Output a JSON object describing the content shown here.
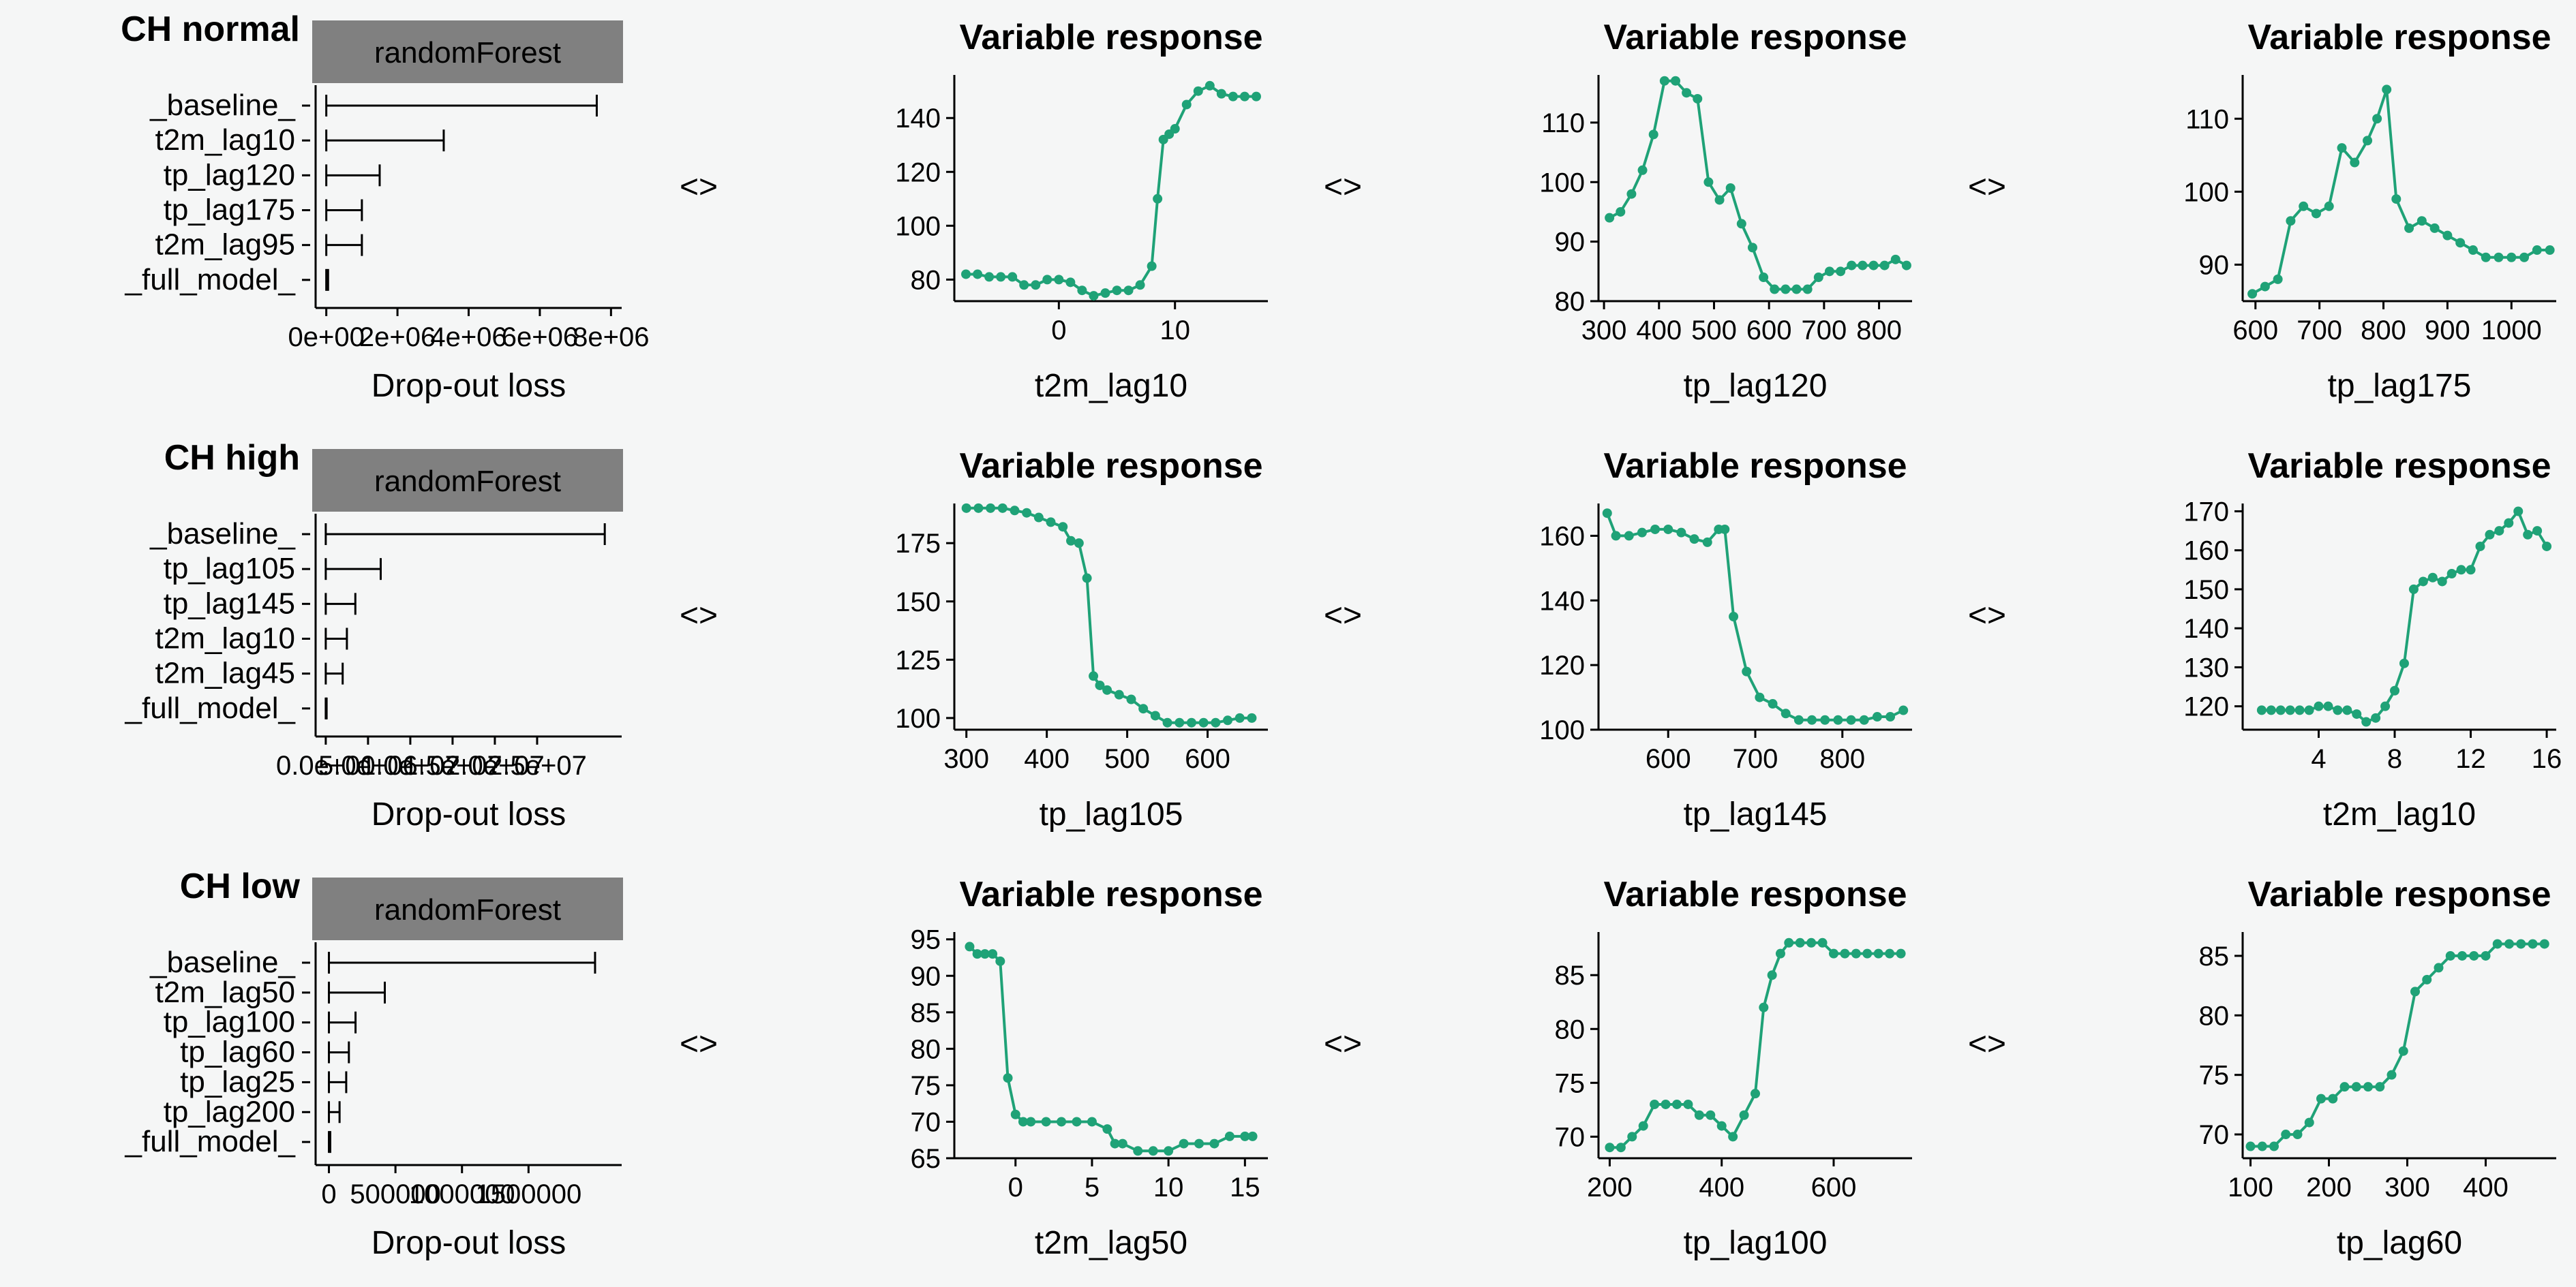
{
  "arrow_label": "<>",
  "colors": {
    "background": "#f5f6f6",
    "line": "#1fa277",
    "strip": "#808080",
    "axis": "#000000"
  },
  "chart_data": [
    {
      "type": "bar",
      "row": 0,
      "col": 0,
      "title": "CH normal",
      "strip": "randomForest",
      "xlabel": "Drop-out loss",
      "categories": [
        "_baseline_",
        "t2m_lag10",
        "tp_lag120",
        "tp_lag175",
        "t2m_lag95",
        "_full_model_"
      ],
      "values": [
        7600000,
        3300000,
        1500000,
        1000000,
        1000000,
        50000
      ],
      "xlim": [
        -300000,
        8300000
      ],
      "ticks": [
        {
          "v": 0,
          "label": "0e+00"
        },
        {
          "v": 2000000,
          "label": "2e+06"
        },
        {
          "v": 4000000,
          "label": "4e+06"
        },
        {
          "v": 6000000,
          "label": "6e+06"
        },
        {
          "v": 8000000,
          "label": "8e+06"
        }
      ]
    },
    {
      "type": "line",
      "row": 0,
      "col": 1,
      "title": "Variable response",
      "xlabel": "t2m_lag10",
      "xlim": [
        -9,
        18
      ],
      "ylim": [
        72,
        156
      ],
      "xticks": [
        {
          "v": 0,
          "label": "0"
        },
        {
          "v": 10,
          "label": "10"
        }
      ],
      "yticks": [
        {
          "v": 80,
          "label": "80"
        },
        {
          "v": 100,
          "label": "100"
        },
        {
          "v": 120,
          "label": "120"
        },
        {
          "v": 140,
          "label": "140"
        }
      ],
      "x": [
        -8,
        -7,
        -6,
        -5,
        -4,
        -3,
        -2,
        -1,
        0,
        1,
        2,
        3,
        4,
        5,
        6,
        7,
        8,
        8.5,
        9,
        9.5,
        10,
        11,
        12,
        13,
        14,
        15,
        16,
        17
      ],
      "y": [
        82,
        82,
        81,
        81,
        81,
        78,
        78,
        80,
        80,
        79,
        76,
        74,
        75,
        76,
        76,
        78,
        85,
        110,
        132,
        134,
        136,
        145,
        150,
        152,
        149,
        148,
        148,
        148
      ]
    },
    {
      "type": "line",
      "row": 0,
      "col": 2,
      "title": "Variable response",
      "xlabel": "tp_lag120",
      "xlim": [
        290,
        860
      ],
      "ylim": [
        80,
        118
      ],
      "xticks": [
        {
          "v": 300,
          "label": "300"
        },
        {
          "v": 400,
          "label": "400"
        },
        {
          "v": 500,
          "label": "500"
        },
        {
          "v": 600,
          "label": "600"
        },
        {
          "v": 700,
          "label": "700"
        },
        {
          "v": 800,
          "label": "800"
        }
      ],
      "yticks": [
        {
          "v": 80,
          "label": "80"
        },
        {
          "v": 90,
          "label": "90"
        },
        {
          "v": 100,
          "label": "100"
        },
        {
          "v": 110,
          "label": "110"
        }
      ],
      "x": [
        310,
        330,
        350,
        370,
        390,
        410,
        430,
        450,
        470,
        490,
        510,
        530,
        550,
        570,
        590,
        610,
        630,
        650,
        670,
        690,
        710,
        730,
        750,
        770,
        790,
        810,
        830,
        850
      ],
      "y": [
        94,
        95,
        98,
        102,
        108,
        117,
        117,
        115,
        114,
        100,
        97,
        99,
        93,
        89,
        84,
        82,
        82,
        82,
        82,
        84,
        85,
        85,
        86,
        86,
        86,
        86,
        87,
        86
      ]
    },
    {
      "type": "line",
      "row": 0,
      "col": 3,
      "title": "Variable response",
      "xlabel": "tp_lag175",
      "xlim": [
        580,
        1070
      ],
      "ylim": [
        85,
        116
      ],
      "xticks": [
        {
          "v": 600,
          "label": "600"
        },
        {
          "v": 700,
          "label": "700"
        },
        {
          "v": 800,
          "label": "800"
        },
        {
          "v": 900,
          "label": "900"
        },
        {
          "v": 1000,
          "label": "1000"
        }
      ],
      "yticks": [
        {
          "v": 90,
          "label": "90"
        },
        {
          "v": 100,
          "label": "100"
        },
        {
          "v": 110,
          "label": "110"
        }
      ],
      "x": [
        595,
        615,
        635,
        655,
        675,
        695,
        715,
        735,
        755,
        775,
        790,
        805,
        820,
        840,
        860,
        880,
        900,
        920,
        940,
        960,
        980,
        1000,
        1020,
        1040,
        1060
      ],
      "y": [
        86,
        87,
        88,
        96,
        98,
        97,
        98,
        106,
        104,
        107,
        110,
        114,
        99,
        95,
        96,
        95,
        94,
        93,
        92,
        91,
        91,
        91,
        91,
        92,
        92
      ]
    },
    {
      "type": "bar",
      "row": 1,
      "col": 0,
      "title": "CH high",
      "strip": "randomForest",
      "xlabel": "Drop-out loss",
      "categories": [
        "_baseline_",
        "tp_lag105",
        "tp_lag145",
        "t2m_lag10",
        "t2m_lag45",
        "_full_model_"
      ],
      "values": [
        33000000,
        6500000,
        3500000,
        2500000,
        2000000,
        100000
      ],
      "xlim": [
        -1200000,
        35000000
      ],
      "ticks": [
        {
          "v": 0,
          "label": "0.0e+00"
        },
        {
          "v": 5000000,
          "label": "5.0e+06"
        },
        {
          "v": 10000000,
          "label": "1.0e+07"
        },
        {
          "v": 15000000,
          "label": "1.5e+07"
        },
        {
          "v": 20000000,
          "label": "2.0e+07"
        },
        {
          "v": 25000000,
          "label": "2.5e+07"
        }
      ]
    },
    {
      "type": "line",
      "row": 1,
      "col": 1,
      "title": "Variable response",
      "xlabel": "tp_lag105",
      "xlim": [
        285,
        675
      ],
      "ylim": [
        95,
        192
      ],
      "xticks": [
        {
          "v": 300,
          "label": "300"
        },
        {
          "v": 400,
          "label": "400"
        },
        {
          "v": 500,
          "label": "500"
        },
        {
          "v": 600,
          "label": "600"
        }
      ],
      "yticks": [
        {
          "v": 100,
          "label": "100"
        },
        {
          "v": 125,
          "label": "125"
        },
        {
          "v": 150,
          "label": "150"
        },
        {
          "v": 175,
          "label": "175"
        }
      ],
      "x": [
        300,
        315,
        330,
        345,
        360,
        375,
        390,
        405,
        420,
        430,
        440,
        450,
        458,
        466,
        475,
        490,
        505,
        520,
        535,
        550,
        565,
        580,
        595,
        610,
        625,
        640,
        655
      ],
      "y": [
        190,
        190,
        190,
        190,
        189,
        188,
        186,
        184,
        182,
        176,
        175,
        160,
        118,
        114,
        112,
        110,
        108,
        104,
        101,
        98,
        98,
        98,
        98,
        98,
        99,
        100,
        100
      ]
    },
    {
      "type": "line",
      "row": 1,
      "col": 2,
      "title": "Variable response",
      "xlabel": "tp_lag145",
      "xlim": [
        520,
        880
      ],
      "ylim": [
        100,
        170
      ],
      "xticks": [
        {
          "v": 600,
          "label": "600"
        },
        {
          "v": 700,
          "label": "700"
        },
        {
          "v": 800,
          "label": "800"
        }
      ],
      "yticks": [
        {
          "v": 100,
          "label": "100"
        },
        {
          "v": 120,
          "label": "120"
        },
        {
          "v": 140,
          "label": "140"
        },
        {
          "v": 160,
          "label": "160"
        }
      ],
      "x": [
        530,
        540,
        555,
        570,
        585,
        600,
        615,
        630,
        645,
        658,
        665,
        675,
        690,
        705,
        720,
        735,
        750,
        765,
        780,
        795,
        810,
        825,
        840,
        855,
        870
      ],
      "y": [
        167,
        160,
        160,
        161,
        162,
        162,
        161,
        159,
        158,
        162,
        162,
        135,
        118,
        110,
        108,
        105,
        103,
        103,
        103,
        103,
        103,
        103,
        104,
        104,
        106
      ]
    },
    {
      "type": "line",
      "row": 1,
      "col": 3,
      "title": "Variable response",
      "xlabel": "t2m_lag10",
      "xlim": [
        0,
        16.5
      ],
      "ylim": [
        114,
        172
      ],
      "xticks": [
        {
          "v": 4,
          "label": "4"
        },
        {
          "v": 8,
          "label": "8"
        },
        {
          "v": 12,
          "label": "12"
        },
        {
          "v": 16,
          "label": "16"
        }
      ],
      "yticks": [
        {
          "v": 120,
          "label": "120"
        },
        {
          "v": 130,
          "label": "130"
        },
        {
          "v": 140,
          "label": "140"
        },
        {
          "v": 150,
          "label": "150"
        },
        {
          "v": 160,
          "label": "160"
        },
        {
          "v": 170,
          "label": "170"
        }
      ],
      "x": [
        1,
        1.5,
        2,
        2.5,
        3,
        3.5,
        4,
        4.5,
        5,
        5.5,
        6,
        6.5,
        7,
        7.5,
        8,
        8.5,
        9,
        9.5,
        10,
        10.5,
        11,
        11.5,
        12,
        12.5,
        13,
        13.5,
        14,
        14.5,
        15,
        15.5,
        16
      ],
      "y": [
        119,
        119,
        119,
        119,
        119,
        119,
        120,
        120,
        119,
        119,
        118,
        116,
        117,
        120,
        124,
        131,
        150,
        152,
        153,
        152,
        154,
        155,
        155,
        161,
        164,
        165,
        167,
        170,
        164,
        165,
        161
      ]
    },
    {
      "type": "bar",
      "row": 2,
      "col": 0,
      "title": "CH low",
      "strip": "randomForest",
      "xlabel": "Drop-out loss",
      "categories": [
        "_baseline_",
        "t2m_lag50",
        "tp_lag100",
        "tp_lag60",
        "tp_lag25",
        "tp_lag200",
        "_full_model_"
      ],
      "values": [
        2000000,
        420000,
        200000,
        150000,
        130000,
        80000,
        10000
      ],
      "xlim": [
        -100000,
        2200000
      ],
      "ticks": [
        {
          "v": 0,
          "label": "0"
        },
        {
          "v": 500000,
          "label": "500000"
        },
        {
          "v": 1000000,
          "label": "1000000"
        },
        {
          "v": 1500000,
          "label": "1500000"
        }
      ]
    },
    {
      "type": "line",
      "row": 2,
      "col": 1,
      "title": "Variable response",
      "xlabel": "t2m_lag50",
      "xlim": [
        -4,
        16.5
      ],
      "ylim": [
        65,
        96
      ],
      "xticks": [
        {
          "v": 0,
          "label": "0"
        },
        {
          "v": 5,
          "label": "5"
        },
        {
          "v": 10,
          "label": "10"
        },
        {
          "v": 15,
          "label": "15"
        }
      ],
      "yticks": [
        {
          "v": 65,
          "label": "65"
        },
        {
          "v": 70,
          "label": "70"
        },
        {
          "v": 75,
          "label": "75"
        },
        {
          "v": 80,
          "label": "80"
        },
        {
          "v": 85,
          "label": "85"
        },
        {
          "v": 90,
          "label": "90"
        },
        {
          "v": 95,
          "label": "95"
        }
      ],
      "x": [
        -3,
        -2.5,
        -2,
        -1.5,
        -1,
        -0.5,
        0,
        0.5,
        1,
        2,
        3,
        4,
        5,
        6,
        6.5,
        7,
        8,
        9,
        10,
        11,
        12,
        13,
        14,
        15,
        15.5
      ],
      "y": [
        94,
        93,
        93,
        93,
        92,
        76,
        71,
        70,
        70,
        70,
        70,
        70,
        70,
        69,
        67,
        67,
        66,
        66,
        66,
        67,
        67,
        67,
        68,
        68,
        68
      ]
    },
    {
      "type": "line",
      "row": 2,
      "col": 2,
      "title": "Variable response",
      "xlabel": "tp_lag100",
      "xlim": [
        180,
        740
      ],
      "ylim": [
        68,
        89
      ],
      "xticks": [
        {
          "v": 200,
          "label": "200"
        },
        {
          "v": 400,
          "label": "400"
        },
        {
          "v": 600,
          "label": "600"
        }
      ],
      "yticks": [
        {
          "v": 70,
          "label": "70"
        },
        {
          "v": 75,
          "label": "75"
        },
        {
          "v": 80,
          "label": "80"
        },
        {
          "v": 85,
          "label": "85"
        }
      ],
      "x": [
        200,
        220,
        240,
        260,
        280,
        300,
        320,
        340,
        360,
        380,
        400,
        420,
        440,
        460,
        475,
        490,
        505,
        520,
        540,
        560,
        580,
        600,
        620,
        640,
        660,
        680,
        700,
        720
      ],
      "y": [
        69,
        69,
        70,
        71,
        73,
        73,
        73,
        73,
        72,
        72,
        71,
        70,
        72,
        74,
        82,
        85,
        87,
        88,
        88,
        88,
        88,
        87,
        87,
        87,
        87,
        87,
        87,
        87
      ]
    },
    {
      "type": "line",
      "row": 2,
      "col": 3,
      "title": "Variable response",
      "xlabel": "tp_lag60",
      "xlim": [
        90,
        490
      ],
      "ylim": [
        68,
        87
      ],
      "xticks": [
        {
          "v": 100,
          "label": "100"
        },
        {
          "v": 200,
          "label": "200"
        },
        {
          "v": 300,
          "label": "300"
        },
        {
          "v": 400,
          "label": "400"
        }
      ],
      "yticks": [
        {
          "v": 70,
          "label": "70"
        },
        {
          "v": 75,
          "label": "75"
        },
        {
          "v": 80,
          "label": "80"
        },
        {
          "v": 85,
          "label": "85"
        }
      ],
      "x": [
        100,
        115,
        130,
        145,
        160,
        175,
        190,
        205,
        220,
        235,
        250,
        265,
        280,
        295,
        310,
        325,
        340,
        355,
        370,
        385,
        400,
        415,
        430,
        445,
        460,
        475
      ],
      "y": [
        69,
        69,
        69,
        70,
        70,
        71,
        73,
        73,
        74,
        74,
        74,
        74,
        75,
        77,
        82,
        83,
        84,
        85,
        85,
        85,
        85,
        86,
        86,
        86,
        86,
        86
      ]
    }
  ]
}
